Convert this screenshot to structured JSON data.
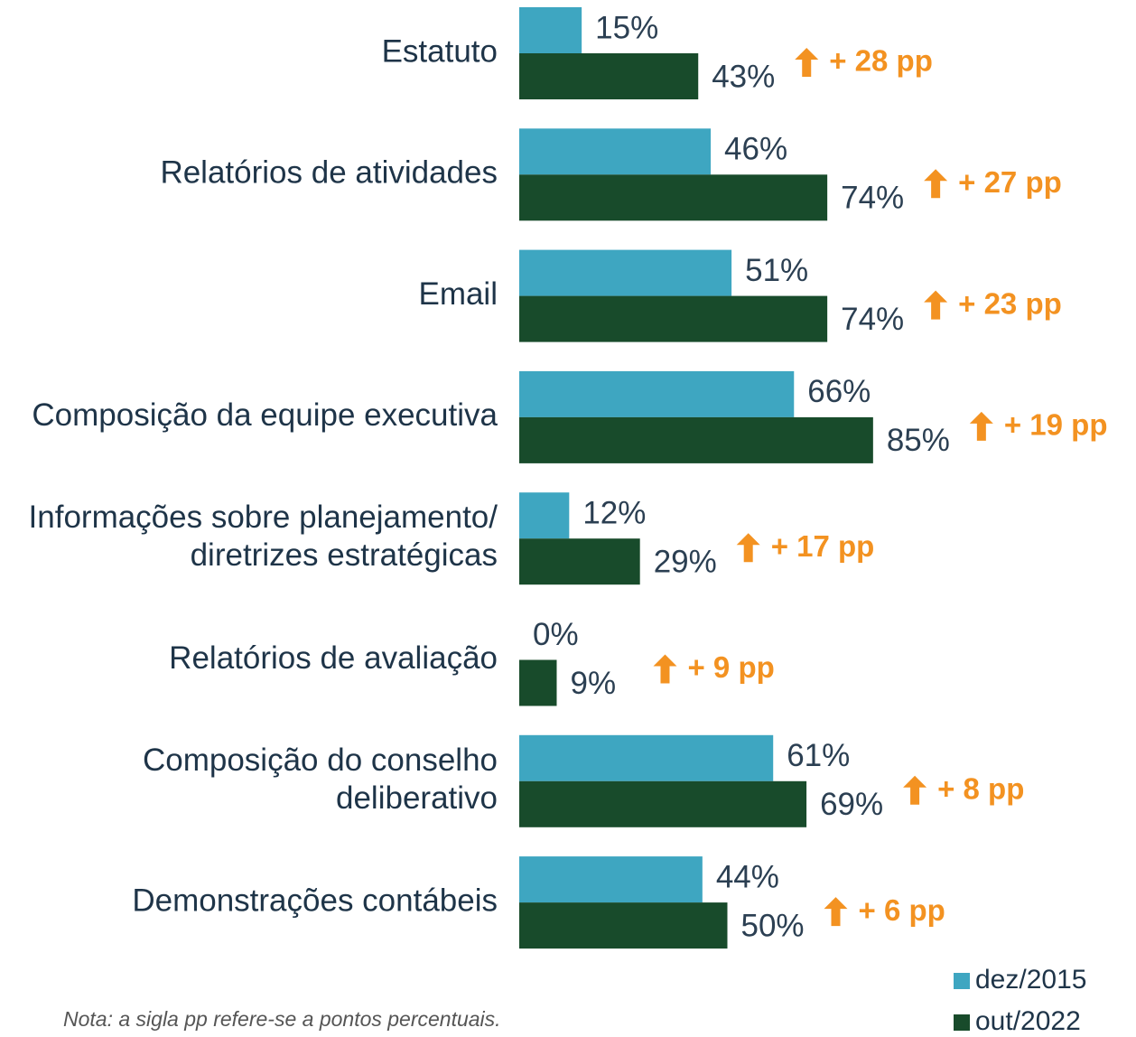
{
  "chart_data": {
    "type": "hbar_grouped",
    "categories": [
      "Estatuto",
      "Relatórios de atividades",
      "Email",
      "Composição da equipe executiva",
      "Informações sobre planejamento/\ndiretrizes estratégicas",
      "Relatórios de avaliação",
      "Composição do conselho\ndeliberativo",
      "Demonstrações contábeis"
    ],
    "series": [
      {
        "name": "dez/2015",
        "color": "#3ea6c1",
        "values": [
          15,
          46,
          51,
          66,
          12,
          0,
          61,
          44
        ],
        "value_labels": [
          "15%",
          "46%",
          "51%",
          "66%",
          "12%",
          "0%",
          "61%",
          "44%"
        ]
      },
      {
        "name": "out/2022",
        "color": "#184b2b",
        "values": [
          43,
          74,
          74,
          85,
          29,
          9,
          69,
          50
        ],
        "value_labels": [
          "43%",
          "74%",
          "74%",
          "85%",
          "29%",
          "9%",
          "69%",
          "50%"
        ]
      }
    ],
    "annotations": [
      "+ 28 pp",
      "+ 27 pp",
      "+ 23 pp",
      "+ 19 pp",
      "+ 17 pp",
      "+ 9 pp",
      "+ 8 pp",
      "+ 6 pp"
    ],
    "annotation_color": "#f39221",
    "xlim": [
      0,
      100
    ],
    "note": "Nota: a sigla pp refere-se a pontos percentuais."
  }
}
